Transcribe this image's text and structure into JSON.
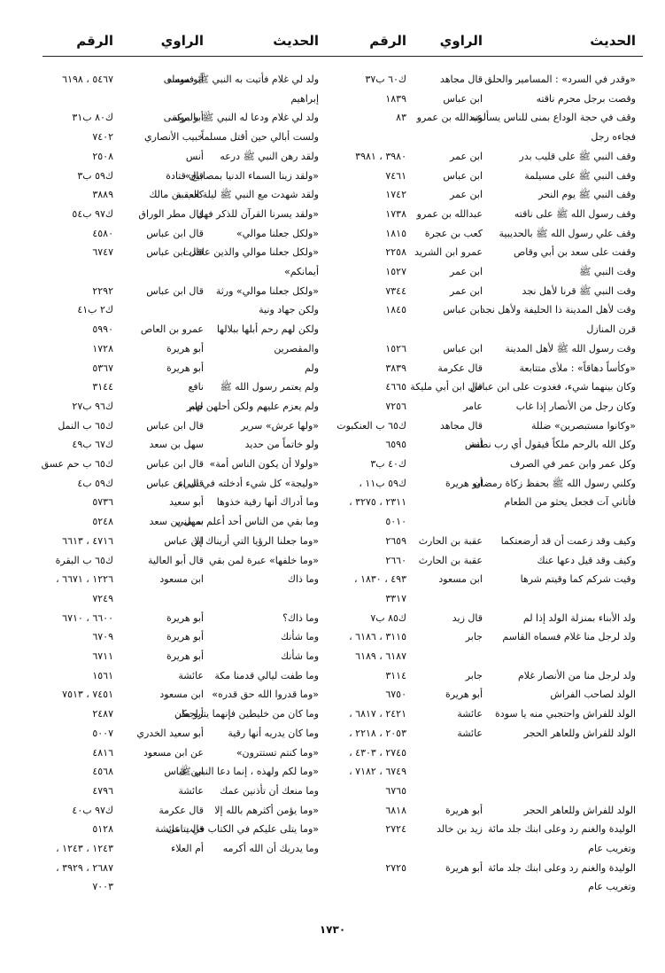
{
  "tables": [
    {
      "headers": {
        "hadith": "الحديث",
        "narrator": "الراوي",
        "number": "الرقم"
      },
      "rows": [
        {
          "hadith": "«وقدر في السرد» : المسامير والحلق",
          "narrator": "قال مجاهد",
          "number": "ك٦٠ ب٣٧"
        },
        {
          "hadith": "وقصت برجل محرم ناقته",
          "narrator": "ابن عباس",
          "number": "١٨٣٩"
        },
        {
          "hadith": "وقف في حجة الوداع بمنى للناس يسألونه",
          "narrator": "عبدالله بن عمرو",
          "number": "٨٣"
        },
        {
          "hadith": "فجاءه رجل"
        },
        {
          "hadith": "وقف النبي ﷺ على قليب بدر",
          "narrator": "ابن عمر",
          "number": "٣٩٨٠ ، ٣٩٨١"
        },
        {
          "hadith": "وقف النبي ﷺ على مسيلمة",
          "narrator": "ابن عباس",
          "number": "٧٤٦١"
        },
        {
          "hadith": "وقف النبي ﷺ يوم النحر",
          "narrator": "ابن عمر",
          "number": "١٧٤٢"
        },
        {
          "hadith": "وقف رسول الله ﷺ على ناقته",
          "narrator": "عبدالله بن عمرو",
          "number": "١٧٣٨"
        },
        {
          "hadith": "وقف علي رسول الله ﷺ بالحديبية",
          "narrator": "كعب بن عجرة",
          "number": "١٨١٥"
        },
        {
          "hadith": "وقفت على سعد بن أبي وقاص",
          "narrator": "عمرو ابن الشريد",
          "number": "٢٢٥٨"
        },
        {
          "hadith": "وقت النبي ﷺ",
          "narrator": "ابن عمر",
          "number": "١٥٢٧"
        },
        {
          "hadith": "وقت النبي ﷺ قرنا لأهل نجد",
          "narrator": "ابن عمر",
          "number": "٧٣٤٤"
        },
        {
          "hadith": "وقت لأهل المدينة ذا الحليفة ولأهل نجد",
          "narrator": "ابن عباس",
          "number": "١٨٤٥"
        },
        {
          "hadith": "قرن المنازل"
        },
        {
          "hadith": "وقت رسول الله ﷺ لأهل المدينة",
          "narrator": "ابن عباس",
          "number": "١٥٢٦"
        },
        {
          "hadith": "«وكأساً دهاقاً» : ملأى متتابعة",
          "narrator": "قال عكرمة",
          "number": "٣٨٣٩"
        },
        {
          "hadith": "وكان بينهما شيء، فغدوت على ابن عباس",
          "narrator": "قال ابن أبي مليكة",
          "number": "٤٦٦٥"
        },
        {
          "hadith": "وكان رجل من الأنصار إذا غاب",
          "narrator": "عامر",
          "number": "٧٢٥٦"
        },
        {
          "hadith": "«وكانوا مستبصرين» ضللة",
          "narrator": "قال مجاهد",
          "number": "ك٦٥ ب العنكبوت"
        },
        {
          "hadith": "وكل الله بالرحم ملكاً فيقول أي رب نطفة",
          "narrator": "أنس",
          "number": "٦٥٩٥"
        },
        {
          "hadith": "وكل عمر وابن عمر في الصرف",
          "number": "ك٤٠ ب٣"
        },
        {
          "hadith": "وكلني رسول الله ﷺ بحفظ زكاة رمضان",
          "narrator": "أبو هريرة",
          "number": "ك٥٩ ب١١ ،"
        },
        {
          "hadith": "فأتاني آت فجعل يحثو من الطعام",
          "number": "٢٣١١ ، ٣٢٧٥ ،"
        },
        {
          "number": "٥٠١٠"
        },
        {
          "hadith": "وكيف وقد زعمت أن قد أرضعتكما",
          "narrator": "عقبة بن الحارث",
          "number": "٢٦٥٩"
        },
        {
          "hadith": "وكيف وقد قيل دعها عنك",
          "narrator": "عقبة بن الحارث",
          "number": "٢٦٦٠"
        },
        {
          "hadith": "وقيت شركم كما وقيتم شرها",
          "narrator": "ابن مسعود",
          "number": "٤٩٣ ، ١٨٣٠ ،"
        },
        {
          "number": "٣٣١٧"
        },
        {
          "hadith": "ولد الأبناء بمنزلة الولد إذا لم",
          "narrator": "قال زيد",
          "number": "ك٨٥ ب٧"
        },
        {
          "hadith": "ولد لرجل منا غلام فسماه القاسم",
          "narrator": "جابر",
          "number": "٣١١٥ ، ٦١٨٦ ،"
        },
        {
          "number": "٦١٨٧ ، ٦١٨٩"
        },
        {
          "hadith": "ولد لرجل منا من الأنصار غلام",
          "narrator": "جابر",
          "number": "٣١١٤"
        },
        {
          "hadith": "الولد لصاحب الفراش",
          "narrator": "أبو هريرة",
          "number": "٦٧٥٠"
        },
        {
          "hadith": "الولد للفراش واحتجبي منه يا سودة",
          "narrator": "عائشة",
          "number": "٢٤٢١ ، ٦٨١٧ ،"
        },
        {
          "hadith": "الولد للفراش وللعاهر الحجر",
          "narrator": "عائشة",
          "number": "٢٠٥٣ ، ٢٢١٨ ،"
        },
        {
          "number": "٢٧٤٥ ، ٤٣٠٣ ،"
        },
        {
          "number": "٦٧٤٩ ، ٧١٨٢ ،"
        },
        {
          "number": "٦٧٦٥"
        },
        {
          "hadith": "الولد للفراش وللعاهر الحجر",
          "narrator": "أبو هريرة",
          "number": "٦٨١٨"
        },
        {
          "hadith": "الوليدة والغنم رد وعلى ابنك جلد مائة",
          "narrator": "زيد بن خالد",
          "number": "٢٧٢٤"
        },
        {
          "hadith": "وتغريب عام"
        },
        {
          "hadith": "الوليدة والغنم رد وعلى ابنك جلد مائة",
          "narrator": "أبو هريرة",
          "number": "٢٧٢٥"
        },
        {
          "hadith": "وتغريب عام"
        }
      ]
    },
    {
      "headers": {
        "hadith": "الحديث",
        "narrator": "الراوي",
        "number": "الرقم"
      },
      "rows": [
        {
          "hadith": "ولد لي غلام فأتيت به النبي ﷺ فسماه",
          "narrator": "أبو موسى",
          "number": "٥٤٦٧ ، ٦١٩٨"
        },
        {
          "hadith": "إبراهيم"
        },
        {
          "hadith": "ولد لي غلام ودعا له النبي ﷺ بالبركة",
          "narrator": "أبو موسى",
          "number": "ك٨٠ ب٣١"
        },
        {
          "hadith": "ولست أبالي حين أقتل مسلماً",
          "narrator": "خبيب الأنصاري",
          "number": "٧٤٠٢"
        },
        {
          "hadith": "ولقد رهن النبي ﷺ درعه",
          "narrator": "أنس",
          "number": "٢٥٠٨"
        },
        {
          "hadith": "«ولقد زينا السماء الدنيا بمصابيح»",
          "narrator": "قال قتادة",
          "number": "ك٥٩ ب٣"
        },
        {
          "hadith": "ولقد شهدت مع النبي ﷺ ليلة العقبة",
          "narrator": "كعب بن مالك",
          "number": "٣٨٨٩"
        },
        {
          "hadith": "«ولقد يسرنا القرآن للذكر فهل",
          "narrator": "قال مطر الوراق",
          "number": "ك٩٧ ب٥٤"
        },
        {
          "hadith": "«ولكل جعلنا موالي»",
          "narrator": "قال ابن عباس",
          "number": "٤٥٨٠"
        },
        {
          "hadith": "«ولكل جعلنا موالي والذين عاقدت",
          "narrator": "قال ابن عباس",
          "number": "٦٧٤٧"
        },
        {
          "hadith": "أيمانكم»"
        },
        {
          "hadith": "«ولكل جعلنا موالي» ورثة",
          "narrator": "قال ابن عباس",
          "number": "٢٢٩٢"
        },
        {
          "hadith": "ولكن جهاد ونية",
          "number": "ك٢ ب٤١"
        },
        {
          "hadith": "ولكن لهم رحم أبلها ببلالها",
          "narrator": "عمرو بن العاص",
          "number": "٥٩٩٠"
        },
        {
          "hadith": "والمقصرين",
          "narrator": "أبو هريرة",
          "number": "١٧٢٨"
        },
        {
          "hadith": "ولم",
          "narrator": "أبو هريرة",
          "number": "٥٣٦٧"
        },
        {
          "hadith": "ولم يعتمر رسول الله ﷺ",
          "narrator": "نافع",
          "number": "٣١٤٤"
        },
        {
          "hadith": "ولم يعزم عليهم ولكن أحلهن لهم",
          "narrator": "جابر",
          "number": "ك٩٦ ب٢٧"
        },
        {
          "hadith": "«ولها عرش» سرير",
          "narrator": "قال ابن عباس",
          "number": "ك٦٥ ب النمل"
        },
        {
          "hadith": "ولو خاتماً من حديد",
          "narrator": "سهل بن سعد",
          "number": "ك٦٧ ب٤٩"
        },
        {
          "hadith": "«ولولا أن يكون الناس أمة»",
          "narrator": "قال ابن عباس",
          "number": "ك٦٥ ب حم عسق"
        },
        {
          "hadith": "«وليجة» كل شيء أدخلته في شيء",
          "narrator": "قال ابن عباس",
          "number": "ك٥٩ ب٤"
        },
        {
          "hadith": "وما أدراك أنها رقية خذوها",
          "narrator": "أبو سعيد",
          "number": "٥٧٣٦"
        },
        {
          "hadith": "وما بقي من الناس أحد أعلم به مني",
          "narrator": "سهل بن سعد",
          "number": "٥٢٤٨"
        },
        {
          "hadith": "«وما جعلنا الرؤيا التي أريناك إلا",
          "narrator": "ابن عباس",
          "number": "٤٧١٦ ، ٦٦١٣"
        },
        {
          "hadith": "«وما خلفها» عبرة لمن بقي",
          "narrator": "قال أبو العالية",
          "number": "ك٦٥ ب البقرة"
        },
        {
          "hadith": "وما ذاك",
          "narrator": "ابن مسعود",
          "number": "١٢٢٦ ، ٦٦٧١ ،"
        },
        {
          "number": "٧٢٤٩"
        },
        {
          "hadith": "وما ذاك؟",
          "narrator": "أبو هريرة",
          "number": "٦٦٠٠ ، ٦٧١٠"
        },
        {
          "hadith": "وما شأنك",
          "narrator": "أبو هريرة",
          "number": "٦٧٠٩"
        },
        {
          "hadith": "وما شأنك",
          "narrator": "أبو هريرة",
          "number": "٦٧١١"
        },
        {
          "hadith": "وما طفت ليالي قدمنا مكة",
          "narrator": "عائشة",
          "number": "١٥٦١"
        },
        {
          "hadith": "«وما قدروا الله حق قدره»",
          "narrator": "ابن مسعود",
          "number": "٧٤٥١ ، ٧٥١٣"
        },
        {
          "hadith": "وما كان من خليطين فإنهما يتراجعان",
          "narrator": "أبو بكر",
          "number": "٢٤٨٧"
        },
        {
          "hadith": "وما كان يدريه أنها رقية",
          "narrator": "أبو سعيد الخدري",
          "number": "٥٠٠٧"
        },
        {
          "hadith": "«وما كنتم تستترون»",
          "narrator": "عن ابن مسعود",
          "number": "٤٨١٦"
        },
        {
          "hadith": "«وما لكم ولهذه ، إنما دعا النبي ﷺ",
          "narrator": "ابن عباس",
          "number": "٤٥٦٨"
        },
        {
          "hadith": "وما منعك أن تأذنين عمك",
          "narrator": "عائشة",
          "number": "٤٧٩٦"
        },
        {
          "hadith": "«وما يؤمن أكثرهم بالله إلا",
          "narrator": "قال عكرمة",
          "number": "ك٩٧ ب٤٠"
        },
        {
          "hadith": "«وما يتلى عليكم في الكتاب في يتامى",
          "narrator": "قالت عائشة",
          "number": "٥١٢٨"
        },
        {
          "hadith": "وما يدريك أن الله أكرمه",
          "narrator": "أم العلاء",
          "number": "١٢٤٣ ، ١٢٤٣ ،"
        },
        {
          "number": "٢٦٨٧ ، ٣٩٢٩ ،"
        },
        {
          "number": "٧٠٠٣"
        }
      ]
    }
  ],
  "footer": {
    "page_number": "١٧٣٠"
  }
}
